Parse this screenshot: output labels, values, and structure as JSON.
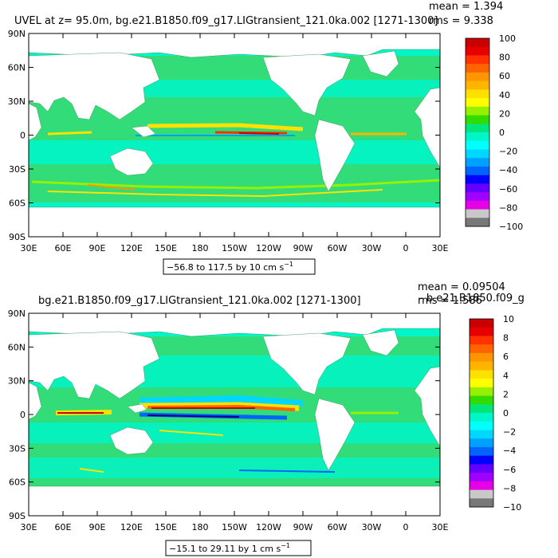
{
  "chart_data": [
    {
      "type": "heatmap",
      "title": "UVEL at z=  95.0m, bg.e21.B1850.f09_g17.LIGtransient_121.0ka.002 [1271-1300]",
      "mean_text": "mean = 1.394",
      "rms_text": "rms = 9.338",
      "range_text": "−56.8 to 117.5 by 10 cm s",
      "range_unit_sup": "−1",
      "x_tick_labels": [
        "30E",
        "60E",
        "90E",
        "120E",
        "150E",
        "180",
        "150W",
        "120W",
        "90W",
        "60W",
        "30W",
        "0",
        "30E"
      ],
      "y_tick_labels": [
        "90N",
        "60N",
        "30N",
        "0",
        "30S",
        "60S",
        "90S"
      ],
      "colorbar_labels": [
        "100",
        "80",
        "60",
        "40",
        "20",
        "0",
        "−20",
        "−40",
        "−60",
        "−80",
        "−100"
      ],
      "colorbar_colors": [
        "#c80000",
        "#e60000",
        "#ff3200",
        "#ff6400",
        "#ff9600",
        "#ffb400",
        "#ffe100",
        "#ffff00",
        "#96f000",
        "#32dc00",
        "#00e678",
        "#00f5c8",
        "#00ffff",
        "#00d7ff",
        "#00a0ff",
        "#0064ff",
        "#0000ff",
        "#6400ff",
        "#a000ff",
        "#e600e6",
        "#c8c8c8",
        "#787878"
      ],
      "ocean_base_color": "#32dc78",
      "equatorial_jet": "eastward undercurrent, peak east Pacific"
    },
    {
      "type": "heatmap",
      "title": "bg.e21.B1850.f09_g17.LIGtransient_121.0ka.002  [1271-1300]",
      "title_overlap": "- b.e21.B1850.f09_g",
      "mean_text": "mean = 0.09504",
      "rms_text": "rms = 1.586",
      "range_text": "−15.1 to 29.11 by 1 cm s",
      "range_unit_sup": "−1",
      "x_tick_labels": [
        "30E",
        "60E",
        "90E",
        "120E",
        "150E",
        "180",
        "150W",
        "120W",
        "90W",
        "60W",
        "30W",
        "0",
        "30E"
      ],
      "y_tick_labels": [
        "90N",
        "60N",
        "30N",
        "0",
        "30S",
        "60S",
        "90S"
      ],
      "colorbar_labels": [
        "10",
        "8",
        "6",
        "4",
        "2",
        "0",
        "−2",
        "−4",
        "−6",
        "−8",
        "−10"
      ],
      "colorbar_colors": [
        "#c80000",
        "#e60000",
        "#ff3200",
        "#ff6400",
        "#ff9600",
        "#ffb400",
        "#ffe100",
        "#ffff00",
        "#96f000",
        "#32dc00",
        "#00e678",
        "#00f5c8",
        "#00ffff",
        "#00d7ff",
        "#00a0ff",
        "#0064ff",
        "#0000ff",
        "#6400ff",
        "#a000ff",
        "#e600e6",
        "#c8c8c8",
        "#787878"
      ],
      "ocean_base_color": "#32dc78",
      "equatorial_jet": "strong difference along western-central Pacific equator"
    }
  ]
}
